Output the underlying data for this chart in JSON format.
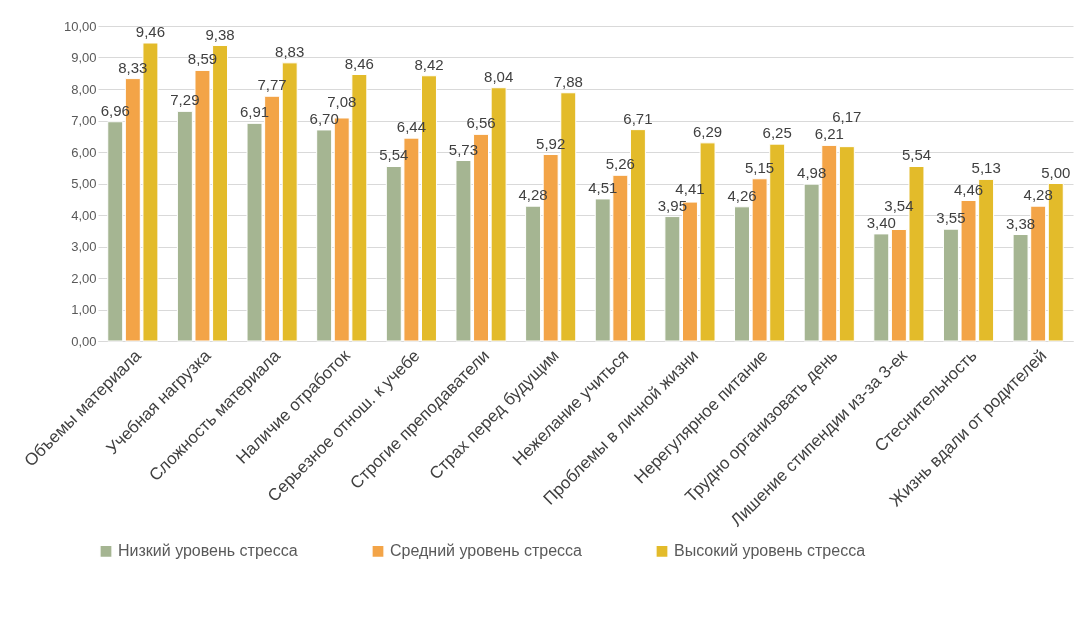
{
  "chart_data": {
    "type": "bar",
    "categories": [
      "Объемы материала",
      "Учебная нагрузка",
      "Сложность материала",
      "Наличие отработок",
      "Серьезное отнош. к учебе",
      "Строгие преподаватели",
      "Страх перед будущим",
      "Нежелание учиться",
      "Проблемы в личной жизни",
      "Нерегулярное питание",
      "Трудно организовать день",
      "Лишение стипендии из-за 3-ек",
      "Стеснительность",
      "Жизнь вдали от родителей"
    ],
    "series": [
      {
        "name": "Низкий уровень стресса",
        "color": "#a5b592",
        "values": [
          6.96,
          7.29,
          6.91,
          6.7,
          5.54,
          5.73,
          4.28,
          4.51,
          3.95,
          4.26,
          4.98,
          3.4,
          3.55,
          3.38
        ],
        "value_labels": [
          "6,96",
          "7,29",
          "6,91",
          "6,70",
          "5,54",
          "5,73",
          "4,28",
          "4,51",
          "3,95",
          "4,26",
          "4,98",
          "3,40",
          "3,55",
          "3,38"
        ]
      },
      {
        "name": "Средний уровень стресса",
        "color": "#f3a447",
        "values": [
          8.33,
          8.59,
          7.77,
          7.08,
          6.44,
          6.56,
          5.92,
          5.26,
          4.41,
          5.15,
          6.21,
          3.54,
          4.46,
          4.28
        ],
        "value_labels": [
          "8,33",
          "8,59",
          "7,77",
          "7,08",
          "6,44",
          "6,56",
          "5,92",
          "5,26",
          "4,41",
          "5,15",
          "6,21",
          "3,54",
          "4,46",
          "4,28"
        ]
      },
      {
        "name": "Высокий уровень стресса",
        "color": "#e3bb2a",
        "values": [
          9.46,
          9.38,
          8.83,
          8.46,
          8.42,
          8.04,
          7.88,
          6.71,
          6.29,
          6.25,
          6.17,
          5.54,
          5.13,
          5.0
        ],
        "value_labels": [
          "9,46",
          "9,38",
          "8,83",
          "8,46",
          "8,42",
          "8,04",
          "7,88",
          "6,71",
          "6,29",
          "6,25",
          "6,17",
          "5,54",
          "5,13",
          "5,00"
        ]
      }
    ],
    "ylim": [
      0,
      10
    ],
    "yticks": [
      {
        "value": 0,
        "label": "0,00"
      },
      {
        "value": 1,
        "label": "1,00"
      },
      {
        "value": 2,
        "label": "2,00"
      },
      {
        "value": 3,
        "label": "3,00"
      },
      {
        "value": 4,
        "label": "4,00"
      },
      {
        "value": 5,
        "label": "5,00"
      },
      {
        "value": 6,
        "label": "6,00"
      },
      {
        "value": 7,
        "label": "7,00"
      },
      {
        "value": 8,
        "label": "8,00"
      },
      {
        "value": 9,
        "label": "9,00"
      },
      {
        "value": 10,
        "label": "10,00"
      }
    ],
    "grid": "y",
    "legend": "bottom"
  }
}
